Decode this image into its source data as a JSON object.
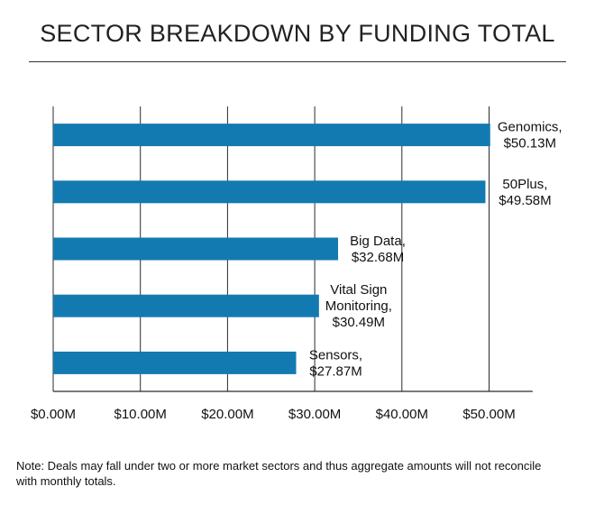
{
  "chart_data": {
    "type": "bar",
    "orientation": "horizontal",
    "title": "SECTOR BREAKDOWN BY FUNDING TOTAL",
    "categories": [
      "Genomics",
      "50Plus",
      "Big Data",
      "Vital Sign Monitoring",
      "Sensors"
    ],
    "values": [
      50.13,
      49.58,
      32.68,
      30.49,
      27.87
    ],
    "data_labels": [
      [
        "Genomics,",
        "$50.13M"
      ],
      [
        "50Plus,",
        "$49.58M"
      ],
      [
        "Big Data,",
        "$32.68M"
      ],
      [
        "Vital Sign",
        "Monitoring,",
        "$30.49M"
      ],
      [
        "Sensors,",
        "$27.87M"
      ]
    ],
    "x_ticks": [
      "$0.00M",
      "$10.00M",
      "$20.00M",
      "$30.00M",
      "$40.00M",
      "$50.00M"
    ],
    "x_tick_values": [
      0,
      10,
      20,
      30,
      40,
      50
    ],
    "xlim": [
      0,
      55
    ],
    "grid": "vertical",
    "bar_color": "#127ab0",
    "grid_color": "#2b2b2b"
  },
  "note": "Note: Deals may fall under two or more market sectors and thus aggregate amounts will not reconcile with monthly totals."
}
